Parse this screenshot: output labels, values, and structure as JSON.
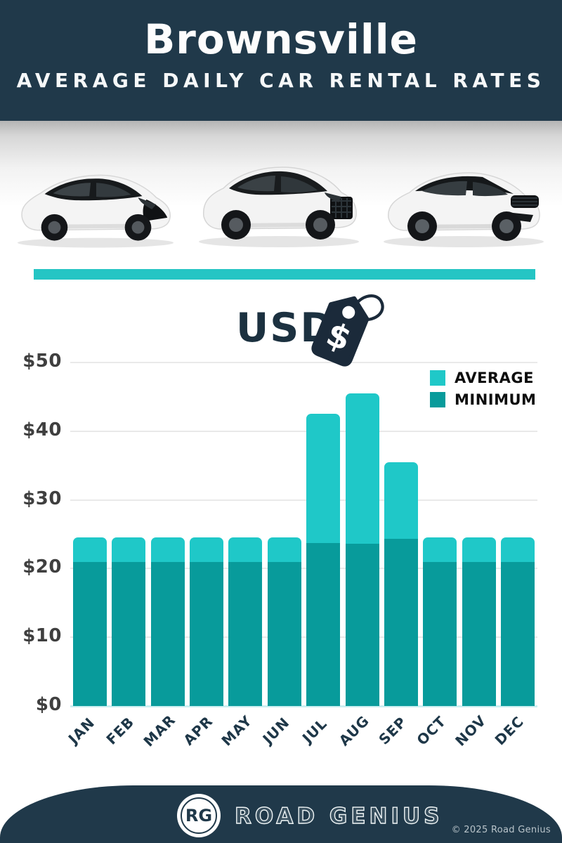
{
  "header": {
    "title": "Brownsville",
    "subtitle": "AVERAGE DAILY CAR RENTAL RATES"
  },
  "currency": {
    "label": "USD",
    "tag_symbol": "$"
  },
  "chart_data": {
    "type": "bar",
    "title": "USD",
    "categories": [
      "JAN",
      "FEB",
      "MAR",
      "APR",
      "MAY",
      "JUN",
      "JUL",
      "AUG",
      "SEP",
      "OCT",
      "NOV",
      "DEC"
    ],
    "series": [
      {
        "name": "AVERAGE",
        "color": "#1fc8c8",
        "values": [
          24.5,
          24.5,
          24.5,
          24.5,
          24.5,
          24.5,
          42.5,
          45.5,
          35.5,
          24.5,
          24.5,
          24.5
        ]
      },
      {
        "name": "MINIMUM",
        "color": "#089b9b",
        "values": [
          21,
          21,
          21,
          21,
          21,
          21,
          23.7,
          23.6,
          24.3,
          21,
          21,
          21
        ]
      }
    ],
    "overlay": true,
    "yticks": [
      0,
      10,
      20,
      30,
      40,
      50
    ],
    "ytick_prefix": "$",
    "ylim": [
      0,
      50
    ],
    "grid": true,
    "legend_position": "top-right"
  },
  "footer": {
    "logo_initials": "RG",
    "brand": "ROAD GENIUS",
    "copyright": "© 2025 Road Genius"
  },
  "colors": {
    "navy": "#20394a",
    "teal_light": "#1fc8c8",
    "teal_dark": "#089b9b",
    "divider": "#25c5c4",
    "grid": "#e9e9e9",
    "axis_text": "#3f3f3f"
  }
}
